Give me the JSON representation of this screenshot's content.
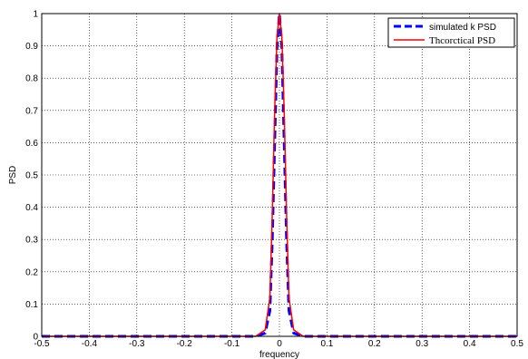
{
  "chart_data": {
    "type": "line",
    "title": "",
    "xlabel": "frequency",
    "ylabel": "PSD",
    "xlim": [
      -0.5,
      0.5
    ],
    "ylim": [
      0,
      1
    ],
    "grid": true,
    "legend_position": "top-right",
    "x_ticks": [
      "-0.5",
      "-0.4",
      "-0.3",
      "-0.2",
      "-0.1",
      "0",
      "0.1",
      "0.2",
      "0.3",
      "0.4",
      "0.5"
    ],
    "y_ticks": [
      "0",
      "0.1",
      "0.2",
      "0.3",
      "0.4",
      "0.5",
      "0.6",
      "0.7",
      "0.8",
      "0.9",
      "1"
    ],
    "series": [
      {
        "name": "simulated k PSD",
        "color": "#0000ff",
        "style": "dashed",
        "x": [
          -0.5,
          -0.05,
          -0.03,
          -0.02,
          -0.015,
          -0.01,
          -0.005,
          0,
          0.005,
          0.01,
          0.015,
          0.02,
          0.03,
          0.05,
          0.5
        ],
        "y": [
          0,
          0,
          0.01,
          0.08,
          0.3,
          0.6,
          0.9,
          1.0,
          0.9,
          0.6,
          0.3,
          0.08,
          0.01,
          0,
          0
        ]
      },
      {
        "name": "Thcorctical PSD",
        "color": "#ff0000",
        "style": "solid",
        "x": [
          -0.5,
          -0.05,
          -0.03,
          -0.02,
          -0.015,
          -0.01,
          -0.005,
          0,
          0.005,
          0.01,
          0.015,
          0.02,
          0.03,
          0.05,
          0.5
        ],
        "y": [
          0,
          0,
          0.02,
          0.12,
          0.38,
          0.7,
          0.93,
          1.0,
          0.93,
          0.7,
          0.38,
          0.12,
          0.02,
          0,
          0
        ]
      }
    ]
  }
}
